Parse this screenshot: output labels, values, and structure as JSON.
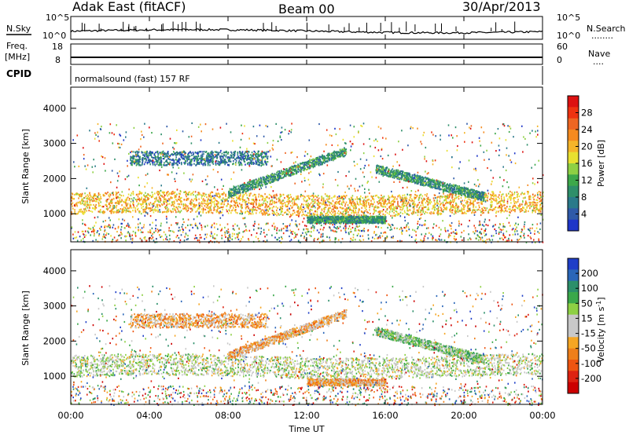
{
  "header": {
    "title_left": "Adak East (fitACF)",
    "title_center": "Beam 00",
    "title_right": "30/Apr/2013"
  },
  "strips": {
    "nsky_label": "N.Sky",
    "nsearch_label": "N.Search",
    "nsearch_dots": "........",
    "nsky_ticks": [
      "10^5",
      "10^0"
    ],
    "nsearch_ticks": [
      "10^5",
      "10^0"
    ],
    "freq_label": "Freq.",
    "freq_unit": "[MHz]",
    "freq_ticks": [
      "18",
      "8"
    ],
    "nave_label": "Nave",
    "nave_dots": "....",
    "nave_ticks": [
      "60",
      "0"
    ],
    "cpid_label": "CPID",
    "cpid_text": "normalsound (fast) 157 RF"
  },
  "chart_data": [
    {
      "type": "heatmap",
      "panel": "power",
      "ylabel": "Slant Range [km]",
      "xlabel": "",
      "ylim": [
        200,
        4600
      ],
      "xlim": [
        0,
        24
      ],
      "y_ticks": [
        1000,
        2000,
        3000,
        4000
      ],
      "colorbar": {
        "label": "Power [dB]",
        "ticks": [
          "28",
          "24",
          "20",
          "16",
          "12",
          "8",
          "4"
        ],
        "colors": [
          "#dd1111",
          "#ee3311",
          "#ee6622",
          "#f58a1f",
          "#f5b52a",
          "#e8e030",
          "#8ed044",
          "#3da84a",
          "#2e8f6a",
          "#2a7a8a",
          "#2f5aa8",
          "#1f36c8"
        ]
      },
      "features": [
        {
          "name": "main band",
          "t_start": 0,
          "t_end": 24,
          "range_km": [
            1000,
            1600
          ],
          "dominant_dB": 20
        },
        {
          "name": "upper band",
          "t_start": 3,
          "t_end": 10,
          "range_km": [
            2400,
            2800
          ],
          "dominant_dB": 8
        },
        {
          "name": "ascending arc",
          "t_start": 8,
          "t_end": 14,
          "range_km": [
            1600,
            2800
          ],
          "dominant_dB": 12
        },
        {
          "name": "descending arc",
          "t_start": 15.5,
          "t_end": 21,
          "range_km": [
            1500,
            2300
          ],
          "dominant_dB": 12
        },
        {
          "name": "low patch",
          "t_start": 12,
          "t_end": 16,
          "range_km": [
            750,
            950
          ],
          "dominant_dB": 12
        }
      ]
    },
    {
      "type": "heatmap",
      "panel": "velocity",
      "ylabel": "Slant Range [km]",
      "xlabel": "Time UT",
      "ylim": [
        200,
        4600
      ],
      "xlim": [
        0,
        24
      ],
      "y_ticks": [
        1000,
        2000,
        3000,
        4000
      ],
      "x_ticks": [
        "00:00",
        "04:00",
        "08:00",
        "12:00",
        "16:00",
        "20:00",
        "00:00"
      ],
      "colorbar": {
        "label": "Velocity [m s",
        "label_sup": "-1",
        "label_end": "]",
        "ticks": [
          "200",
          "100",
          "50",
          "15",
          "-15",
          "-50",
          "-100",
          "-200"
        ],
        "colors": [
          "#1f3fc8",
          "#2a66b8",
          "#2c8f6a",
          "#3aa84a",
          "#8ed044",
          "#c8c8c8",
          "#c8c8c8",
          "#f5a623",
          "#ee7f1a",
          "#ee5511",
          "#dd2211",
          "#cc0000"
        ]
      },
      "features": [
        {
          "name": "main band",
          "t_start": 0,
          "t_end": 24,
          "range_km": [
            1000,
            1600
          ],
          "dominant_velocity": 0
        },
        {
          "name": "upper band",
          "t_start": 3,
          "t_end": 10,
          "range_km": [
            2400,
            2800
          ],
          "dominant_velocity": -50
        },
        {
          "name": "ascending arc",
          "t_start": 8,
          "t_end": 14,
          "range_km": [
            1600,
            2800
          ],
          "dominant_velocity": -50
        },
        {
          "name": "descending arc",
          "t_start": 15.5,
          "t_end": 21,
          "range_km": [
            1500,
            2300
          ],
          "dominant_velocity": 30
        },
        {
          "name": "low patch",
          "t_start": 12,
          "t_end": 16,
          "range_km": [
            750,
            950
          ],
          "dominant_velocity": -50
        }
      ]
    }
  ]
}
